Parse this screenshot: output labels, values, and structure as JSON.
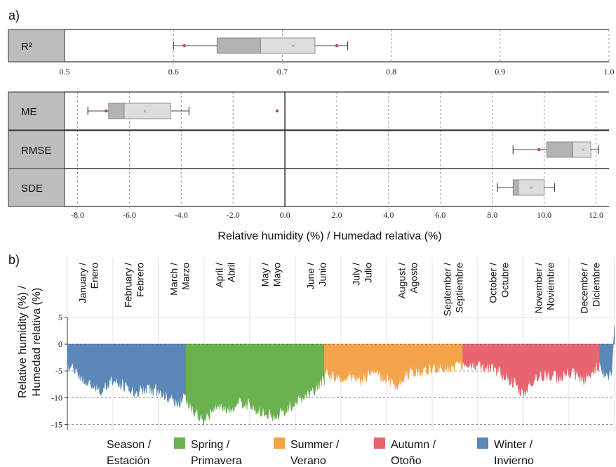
{
  "panel_a": {
    "label": "a)",
    "axis_title": "Relative humidity (%) / Humedad relativa (%)"
  },
  "panel_b": {
    "label": "b)",
    "ylabel_line1": "Relative humidity (%) /",
    "ylabel_line2": "Humedad relativa (%)"
  },
  "legend": {
    "title_line1": "Season /",
    "title_line2": "Estación",
    "items": [
      {
        "line1": "Spring /",
        "line2": "Primavera",
        "color": "#6ab150"
      },
      {
        "line1": "Summer /",
        "line2": "Verano",
        "color": "#f5a34a"
      },
      {
        "line1": "Autumn /",
        "line2": "Otoño",
        "color": "#e8646e"
      },
      {
        "line1": "Winter /",
        "line2": "Invierno",
        "color": "#5b88b9"
      }
    ]
  },
  "chart_data": [
    {
      "type": "box",
      "rows": [
        {
          "name": "R²",
          "whisker_low": 0.6,
          "q1": 0.64,
          "median": 0.68,
          "q3": 0.73,
          "whisker_high": 0.76,
          "mean": 0.71,
          "outliers": [
            0.61,
            0.75
          ]
        }
      ],
      "xlim": [
        0.5,
        1.0
      ],
      "ticks": [
        {
          "value": 0.5,
          "label": "0.5"
        },
        {
          "value": 0.6,
          "label": "0.6"
        },
        {
          "value": 0.7,
          "label": "0.7"
        },
        {
          "value": 0.8,
          "label": "0.8"
        },
        {
          "value": 0.9,
          "label": "0.9"
        },
        {
          "value": 1.0,
          "label": "1.0"
        }
      ],
      "grid": true
    },
    {
      "type": "box",
      "rows": [
        {
          "name": "ME",
          "whisker_low": -7.6,
          "q1": -6.8,
          "median": -6.2,
          "q3": -4.4,
          "whisker_high": -3.7,
          "mean": -5.4,
          "outliers": [
            -6.9,
            -0.3
          ]
        },
        {
          "name": "RMSE",
          "whisker_low": 8.8,
          "q1": 10.1,
          "median": 11.1,
          "q3": 11.8,
          "whisker_high": 12.1,
          "mean": 11.5,
          "outliers": [
            9.8
          ]
        },
        {
          "name": "SDE",
          "whisker_low": 8.2,
          "q1": 8.8,
          "median": 9.0,
          "q3": 10.0,
          "whisker_high": 10.4,
          "mean": 9.5,
          "outliers": []
        }
      ],
      "xlim": [
        -8.5,
        12.5
      ],
      "ticks": [
        {
          "value": -8,
          "label": "-8.0"
        },
        {
          "value": -6,
          "label": "-6.0"
        },
        {
          "value": -4,
          "label": "-4.0"
        },
        {
          "value": -2,
          "label": "-2.0"
        },
        {
          "value": 0,
          "label": "0.0"
        },
        {
          "value": 2,
          "label": "2.0"
        },
        {
          "value": 4,
          "label": "4.0"
        },
        {
          "value": 6,
          "label": "6.0"
        },
        {
          "value": 8,
          "label": "8.0"
        },
        {
          "value": 10,
          "label": "10.0"
        },
        {
          "value": 12,
          "label": "12.0"
        }
      ],
      "xlabel": "Relative humidity (%) / Humedad relativa (%)",
      "grid": true
    },
    {
      "type": "area",
      "ylim": [
        -16,
        5
      ],
      "yticks": [
        5,
        0,
        -5,
        -10,
        -15
      ],
      "months": [
        {
          "line1": "January /",
          "line2": "Enero"
        },
        {
          "line1": "February /",
          "line2": "Febrero"
        },
        {
          "line1": "March /",
          "line2": "Marzo"
        },
        {
          "line1": "April /",
          "line2": "Abril"
        },
        {
          "line1": "May /",
          "line2": "Mayo"
        },
        {
          "line1": "June /",
          "line2": "Junio"
        },
        {
          "line1": "July /",
          "line2": "Julio"
        },
        {
          "line1": "August /",
          "line2": "Agosto"
        },
        {
          "line1": "September /",
          "line2": "Septiembre"
        },
        {
          "line1": "October /",
          "line2": "Octubre"
        },
        {
          "line1": "November /",
          "line2": "Noviembre"
        },
        {
          "line1": "December /",
          "line2": "Diciembre"
        }
      ],
      "series": [
        {
          "name": "Winter",
          "color": "#5b88b9",
          "x": [
            1,
            80
          ],
          "profile": [
            [
              1,
              -3.5
            ],
            [
              8,
              -5.5
            ],
            [
              16,
              -7.0
            ],
            [
              24,
              -8.5
            ],
            [
              30,
              -6.5
            ],
            [
              38,
              -7.5
            ],
            [
              46,
              -9.0
            ],
            [
              52,
              -8.0
            ],
            [
              60,
              -8.5
            ],
            [
              68,
              -9.5
            ],
            [
              74,
              -11.0
            ],
            [
              80,
              -9.0
            ]
          ]
        },
        {
          "name": "Spring",
          "color": "#6ab150",
          "x": [
            80,
            172
          ],
          "profile": [
            [
              80,
              -10.0
            ],
            [
              86,
              -12.5
            ],
            [
              92,
              -14.5
            ],
            [
              100,
              -11.0
            ],
            [
              108,
              -12.0
            ],
            [
              116,
              -10.5
            ],
            [
              124,
              -11.5
            ],
            [
              132,
              -12.5
            ],
            [
              140,
              -13.5
            ],
            [
              148,
              -11.5
            ],
            [
              156,
              -10.0
            ],
            [
              164,
              -8.5
            ],
            [
              172,
              -6.5
            ]
          ]
        },
        {
          "name": "Summer",
          "color": "#f5a34a",
          "x": [
            172,
            264
          ],
          "profile": [
            [
              172,
              -5.0
            ],
            [
              180,
              -6.0
            ],
            [
              188,
              -5.5
            ],
            [
              196,
              -6.5
            ],
            [
              204,
              -5.0
            ],
            [
              212,
              -6.0
            ],
            [
              220,
              -7.5
            ],
            [
              226,
              -5.5
            ],
            [
              234,
              -5.0
            ],
            [
              242,
              -4.5
            ],
            [
              250,
              -4.0
            ],
            [
              258,
              -4.5
            ],
            [
              264,
              -3.5
            ]
          ]
        },
        {
          "name": "Autumn",
          "color": "#e8646e",
          "x": [
            264,
            355
          ],
          "profile": [
            [
              264,
              -3.0
            ],
            [
              272,
              -3.5
            ],
            [
              280,
              -4.0
            ],
            [
              288,
              -5.0
            ],
            [
              296,
              -6.5
            ],
            [
              304,
              -9.0
            ],
            [
              312,
              -6.0
            ],
            [
              320,
              -5.5
            ],
            [
              328,
              -6.0
            ],
            [
              336,
              -5.0
            ],
            [
              344,
              -6.5
            ],
            [
              350,
              -5.0
            ],
            [
              355,
              -3.5
            ]
          ]
        },
        {
          "name": "Winter",
          "color": "#5b88b9",
          "x": [
            355,
            365
          ],
          "profile": [
            [
              355,
              -4.0
            ],
            [
              358,
              -5.0
            ],
            [
              361,
              -6.0
            ],
            [
              363,
              -5.0
            ],
            [
              365,
              3.5
            ]
          ]
        }
      ],
      "grid": true
    }
  ]
}
